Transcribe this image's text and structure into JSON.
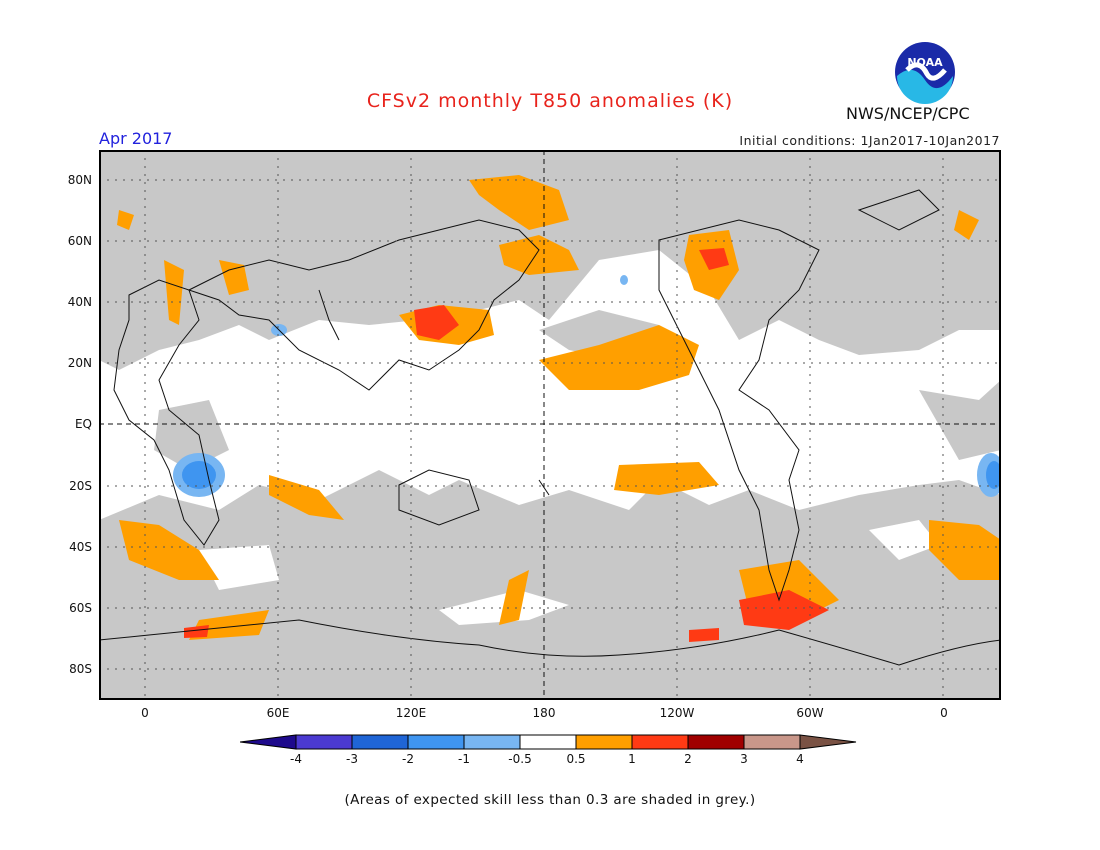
{
  "title": "CFSv2 monthly T850 anomalies (K)",
  "month": "Apr 2017",
  "initial_conditions": "Initial conditions: 1Jan2017-10Jan2017",
  "agency": "NWS/NCEP/CPC",
  "logo_text": "NOAA",
  "latitude_labels": [
    "80N",
    "60N",
    "40N",
    "20N",
    "EQ",
    "20S",
    "40S",
    "60S",
    "80S"
  ],
  "longitude_labels": [
    "0",
    "60E",
    "120E",
    "180",
    "120W",
    "60W",
    "0"
  ],
  "colorbar": {
    "labels": [
      "-4",
      "-3",
      "-2",
      "-1",
      "-0.5",
      "0.5",
      "1",
      "2",
      "3",
      "4"
    ],
    "colors": [
      "#1e0a8c",
      "#4b3ad1",
      "#1f65d6",
      "#3f95f0",
      "#78b6f2",
      "#ffffff",
      "#ff9f00",
      "#ff3a14",
      "#a00000",
      "#c9978a",
      "#7a5244"
    ]
  },
  "skill_shading_color": "#c8c8c8",
  "note": "(Areas of expected skill less than 0.3 are shaded in grey.)"
}
